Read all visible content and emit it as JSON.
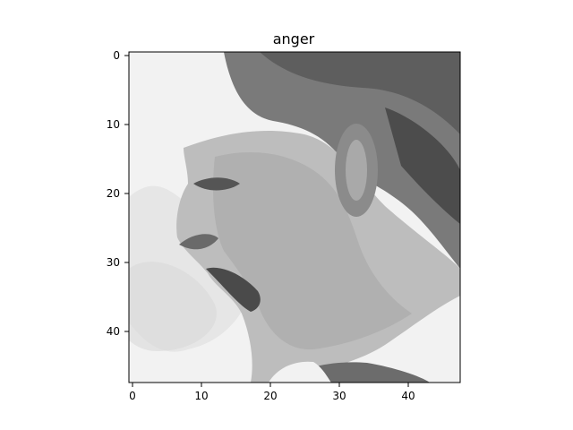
{
  "figure": {
    "title": "anger"
  },
  "image": {
    "description_semantic": "48x48 grayscale face in profile, mouth open",
    "grid_size": [
      48,
      48
    ],
    "colormap": "gray"
  },
  "axes": {
    "x_ticks": [
      "0",
      "10",
      "20",
      "30",
      "40"
    ],
    "y_ticks": [
      "0",
      "10",
      "20",
      "30",
      "40"
    ],
    "xlim": [
      -0.5,
      47.5
    ],
    "ylim": [
      47.5,
      -0.5
    ]
  }
}
